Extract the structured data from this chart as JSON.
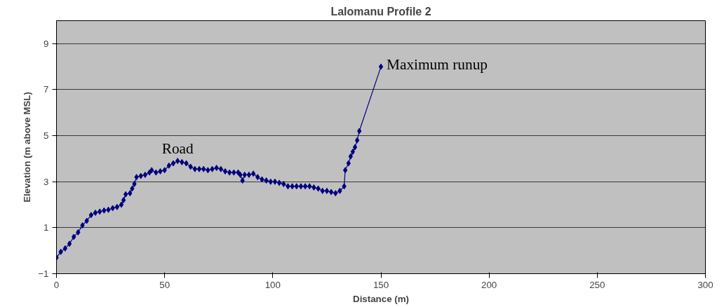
{
  "chart_data": {
    "type": "line",
    "title": "Lalomanu Profile 2",
    "xlabel": "Distance (m)",
    "ylabel": "Elevation (m above MSL)",
    "x": [
      0,
      2,
      4,
      6,
      8,
      10,
      12,
      14,
      16,
      18,
      20,
      22,
      24,
      26,
      28,
      30,
      31,
      32,
      34,
      35,
      36,
      37,
      39,
      41,
      43,
      44,
      46,
      48,
      50,
      52,
      54,
      56,
      58,
      60,
      62,
      64,
      66,
      68,
      70,
      72,
      74,
      76,
      78,
      80,
      82,
      84,
      85,
      86,
      87,
      89,
      91,
      93,
      95,
      97,
      99,
      101,
      103,
      105,
      107,
      109,
      111,
      113,
      115,
      117,
      119,
      121,
      123,
      125,
      127,
      129,
      131,
      133,
      133.5,
      135,
      136,
      137,
      138,
      139,
      140,
      150
    ],
    "series": [
      {
        "color": "#000080",
        "values": [
          -0.3,
          -0.05,
          0.1,
          0.3,
          0.6,
          0.8,
          1.1,
          1.3,
          1.55,
          1.65,
          1.7,
          1.75,
          1.78,
          1.85,
          1.9,
          2.0,
          2.2,
          2.45,
          2.5,
          2.7,
          2.9,
          3.2,
          3.25,
          3.3,
          3.4,
          3.5,
          3.4,
          3.45,
          3.5,
          3.7,
          3.8,
          3.9,
          3.85,
          3.8,
          3.65,
          3.55,
          3.55,
          3.55,
          3.5,
          3.55,
          3.6,
          3.55,
          3.45,
          3.4,
          3.4,
          3.4,
          3.3,
          3.05,
          3.3,
          3.3,
          3.35,
          3.2,
          3.1,
          3.05,
          3.0,
          3.0,
          2.95,
          2.9,
          2.8,
          2.8,
          2.8,
          2.8,
          2.8,
          2.8,
          2.75,
          2.7,
          2.6,
          2.6,
          2.55,
          2.5,
          2.6,
          2.8,
          3.5,
          3.8,
          4.1,
          4.3,
          4.5,
          4.8,
          5.2,
          8.0
        ]
      }
    ],
    "xlim": [
      0,
      300
    ],
    "xticks": [
      0,
      50,
      100,
      150,
      200,
      250,
      300
    ],
    "ylim": [
      -1,
      10
    ],
    "yticks": [
      -1,
      1,
      3,
      5,
      7,
      9
    ],
    "grid": "y",
    "marker": "diamond",
    "line_style": "solid",
    "annotations": [
      {
        "text": "Road",
        "x": 56,
        "y": 3.9
      },
      {
        "text": "Maximum runup",
        "x": 150,
        "y": 8.0
      }
    ]
  }
}
